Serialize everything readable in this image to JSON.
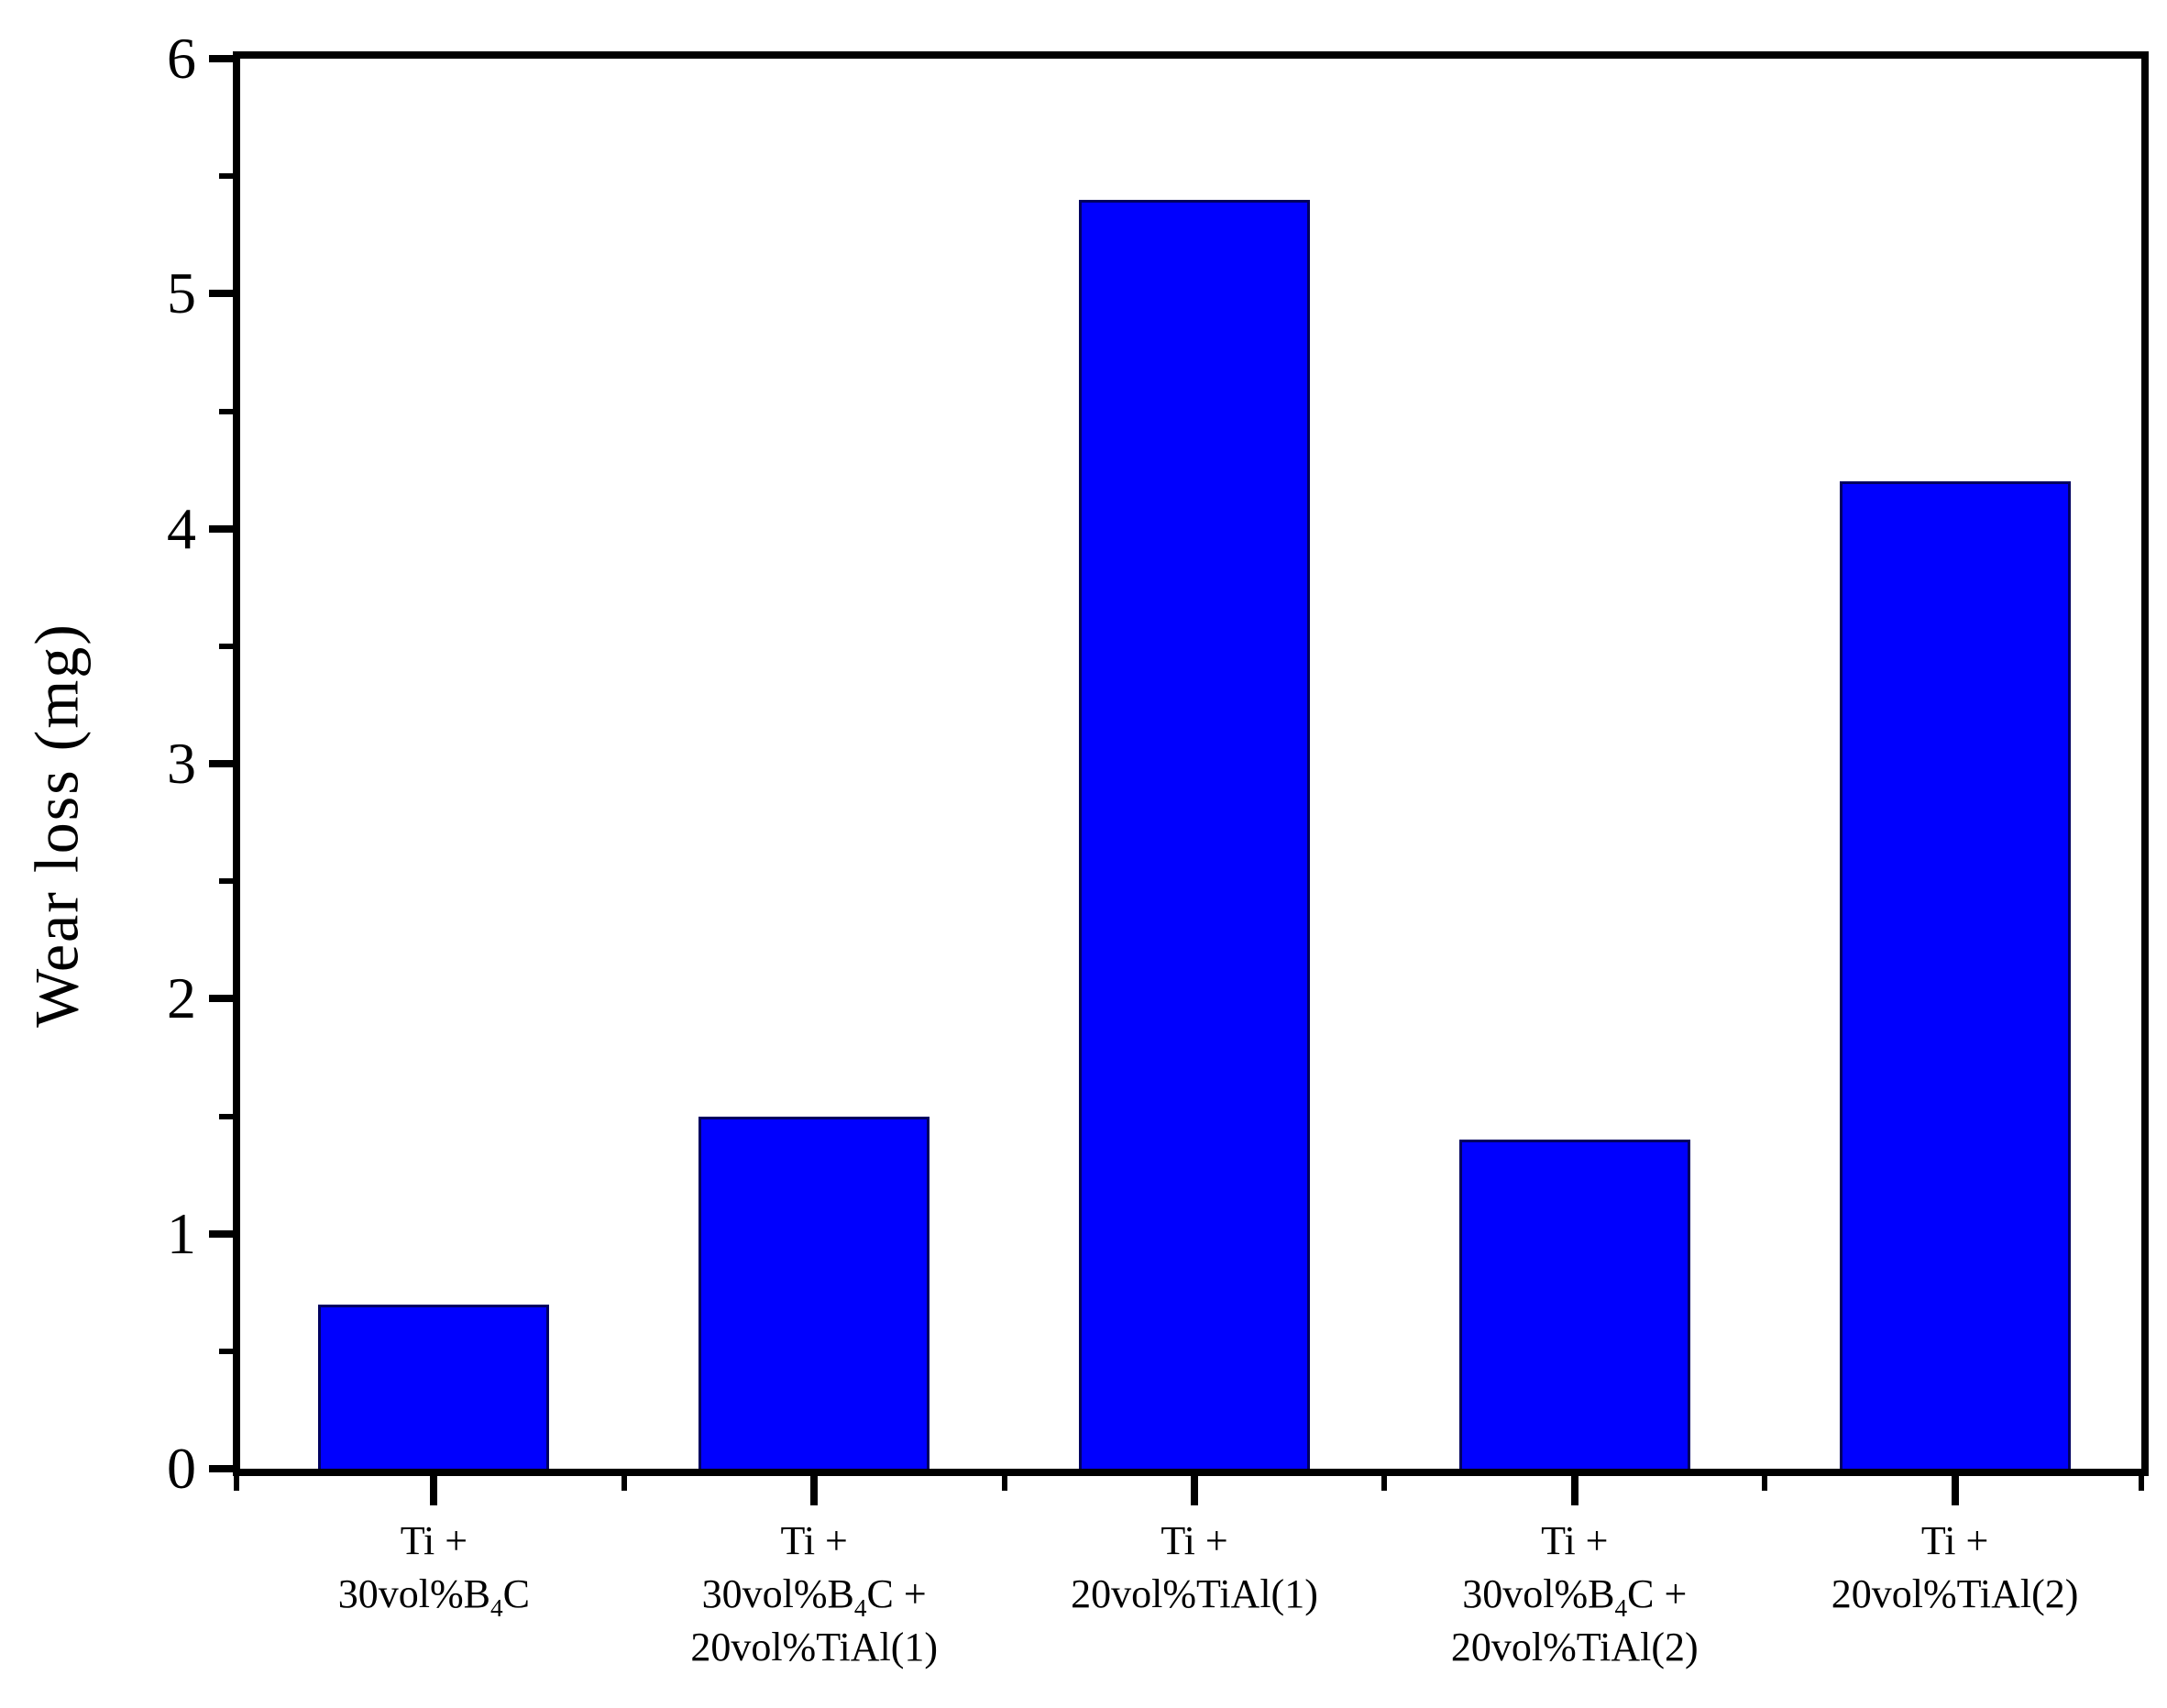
{
  "chart_data": {
    "type": "bar",
    "title": "",
    "xlabel": "",
    "ylabel": "Wear loss (mg)",
    "categories": [
      "Ti +\n30vol%B₄C",
      "Ti +\n30vol%B₄C +\n20vol%TiAl(1)",
      "Ti +\n20vol%TiAl(1)",
      "Ti +\n30vol%B₄C +\n20vol%TiAl(2)",
      "Ti +\n20vol%TiAl(2)"
    ],
    "values": [
      0.7,
      1.5,
      5.4,
      1.4,
      4.2
    ],
    "ylim": [
      0,
      6
    ],
    "y_tick_labels": [
      "0",
      "1",
      "2",
      "3",
      "4",
      "5",
      "6"
    ],
    "y_major_step": 1,
    "y_minor_step": 0.5,
    "grid": false,
    "legend": "none",
    "bar_color": "#0000fe",
    "bar_border_color": "#000060",
    "axis_color": "#000000",
    "text_color": "#000000"
  }
}
